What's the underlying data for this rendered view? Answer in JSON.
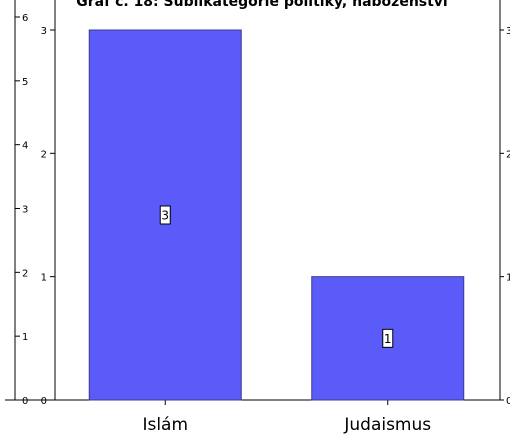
{
  "chart_data": {
    "type": "bar",
    "title": "Graf č. 18: Sublikategorie politiky, náboženství",
    "categories": [
      "Islám",
      "Judaismus"
    ],
    "values": [
      3,
      1
    ],
    "data_labels": [
      "3",
      "1"
    ],
    "ylim": [
      0,
      3
    ],
    "y_ticks_left": [
      "0",
      "1",
      "2",
      "3"
    ],
    "outer_left_ticks": [
      "0",
      "1",
      "2",
      "3",
      "4",
      "5",
      "6"
    ],
    "right_ticks": [
      "0",
      "1",
      "2",
      "3"
    ],
    "bar_color": "#5b5bfa",
    "bar_stroke": "#3b3b8a",
    "grid": false,
    "legend": "none"
  }
}
